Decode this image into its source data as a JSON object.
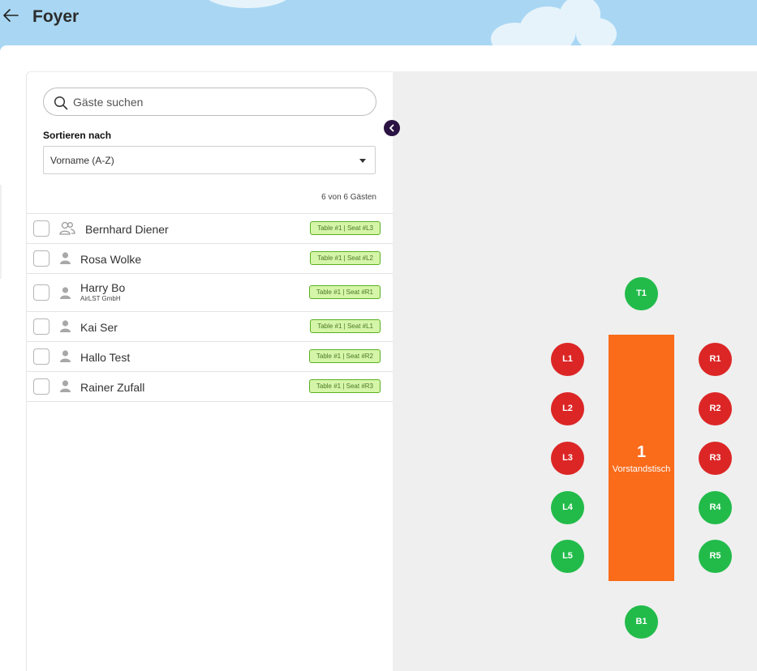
{
  "header": {
    "title": "Foyer",
    "back_icon": "arrow-left-icon"
  },
  "sidebar": {
    "search_placeholder": "Gäste suchen",
    "sort_label": "Sortieren nach",
    "sort_value": "Vorname (A-Z)",
    "count_text": "6 von 6 Gästen",
    "guests": [
      {
        "name": "Bernhard Diener",
        "subtitle": "",
        "icon": "group-icon",
        "seat": "Table #1 | Seat #L3"
      },
      {
        "name": "Rosa Wolke",
        "subtitle": "",
        "icon": "person-icon",
        "seat": "Table #1 | Seat #L2"
      },
      {
        "name": "Harry Bo",
        "subtitle": "AirLST GmbH",
        "icon": "person-icon",
        "seat": "Table #1 | Seat #R1"
      },
      {
        "name": "Kai Ser",
        "subtitle": "",
        "icon": "person-icon",
        "seat": "Table #1 | Seat #L1"
      },
      {
        "name": "Hallo Test",
        "subtitle": "",
        "icon": "person-icon",
        "seat": "Table #1 | Seat #R2"
      },
      {
        "name": "Rainer Zufall",
        "subtitle": "",
        "icon": "person-icon",
        "seat": "Table #1 | Seat #R3"
      }
    ]
  },
  "table": {
    "number": "1",
    "name": "Vorstandstisch",
    "seats": {
      "T1": "T1",
      "B1": "B1",
      "L1": "L1",
      "L2": "L2",
      "L3": "L3",
      "L4": "L4",
      "L5": "L5",
      "R1": "R1",
      "R2": "R2",
      "R3": "R3",
      "R4": "R4",
      "R5": "R5"
    }
  },
  "colors": {
    "seat_taken": "#dc2626",
    "seat_free": "#22bb4a",
    "table": "#fa6b1a",
    "badge_bg": "#d5f5a8",
    "sky": "#a9d7f3"
  }
}
